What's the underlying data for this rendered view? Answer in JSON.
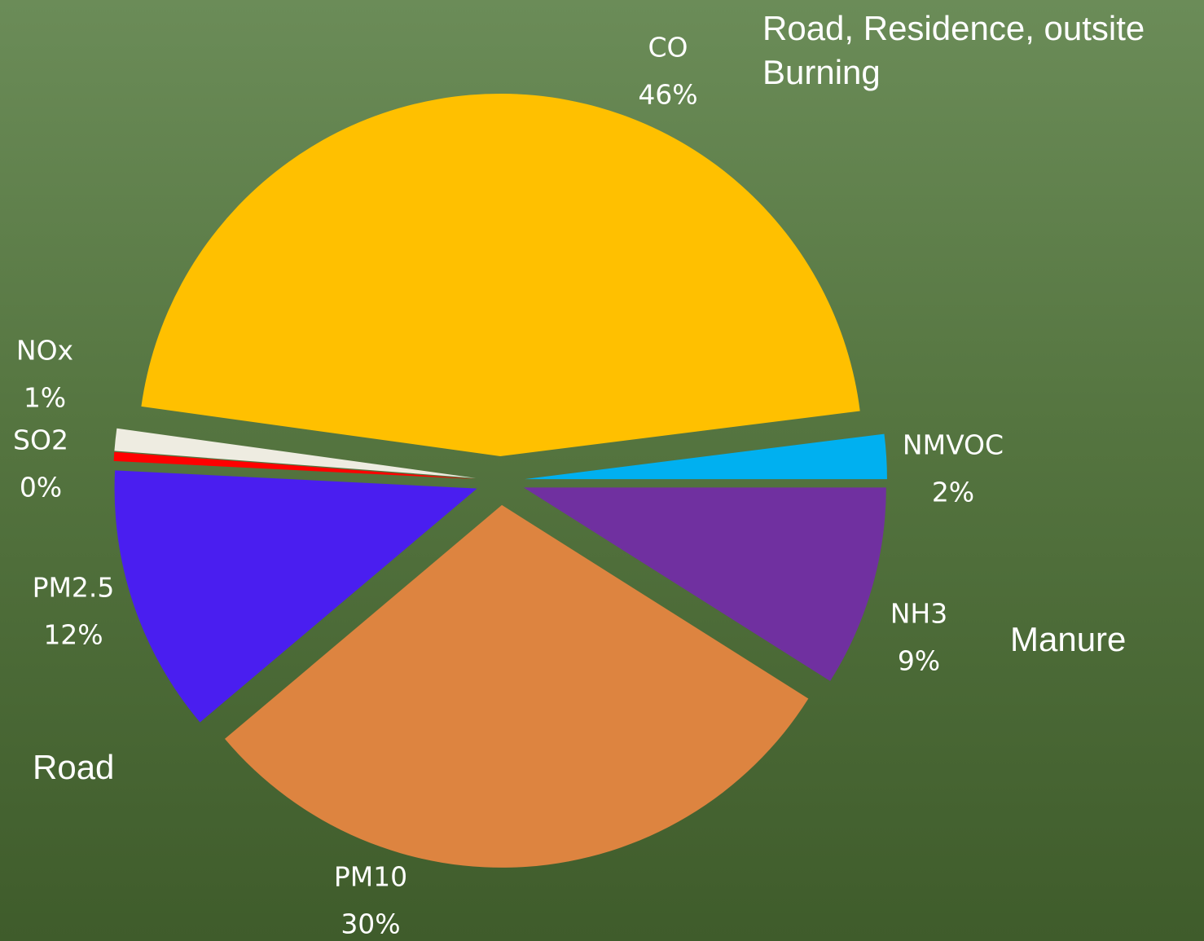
{
  "chart_data": {
    "type": "pie",
    "categories": [
      "CO",
      "NMVOC",
      "NH3",
      "PM10",
      "PM2.5",
      "SO2",
      "NOx"
    ],
    "values": [
      46,
      2,
      9,
      30,
      12,
      0.4,
      1
    ],
    "value_labels": [
      "46%",
      "2%",
      "9%",
      "30%",
      "12%",
      "0%",
      "1%"
    ],
    "colors": [
      "#ffc000",
      "#00b0f0",
      "#7030a0",
      "#dd8440",
      "#4a1ef0",
      "#ff0000",
      "#eeece1"
    ],
    "annotations": [
      "Road, Residence, outsite",
      "Burning",
      "Manure",
      "Road"
    ]
  }
}
